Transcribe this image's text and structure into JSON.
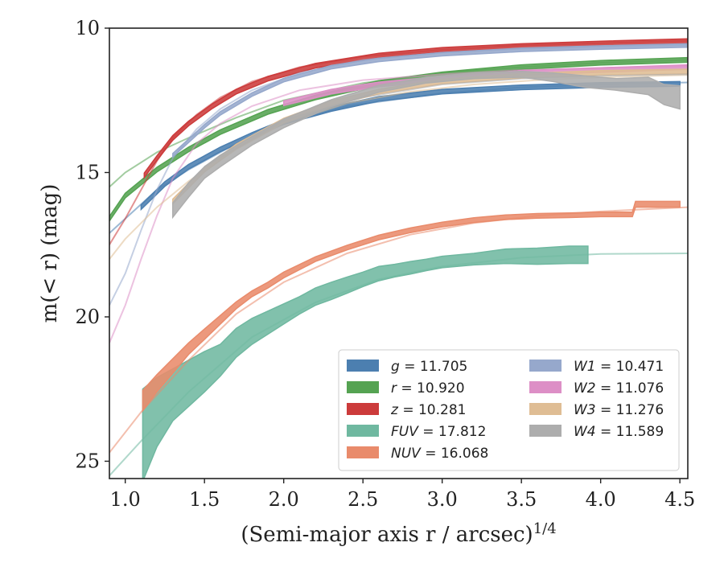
{
  "chart_data": {
    "type": "line",
    "title": "",
    "xlabel": "(Semi-major axis r / arcsec)^1/4",
    "ylabel": "m(< r) (mag)",
    "xlim": [
      0.9,
      4.55
    ],
    "ylim": [
      25.6,
      10
    ],
    "y_inverted": true,
    "xticks": [
      "1.0",
      "1.5",
      "2.0",
      "2.5",
      "3.0",
      "3.5",
      "4.0",
      "4.5"
    ],
    "xtick_values": [
      1.0,
      1.5,
      2.0,
      2.5,
      3.0,
      3.5,
      4.0,
      4.5
    ],
    "yticks": [
      "10",
      "15",
      "20",
      "25"
    ],
    "ytick_values": [
      10,
      15,
      20,
      25
    ],
    "grid": false,
    "legend_position": "lower-right",
    "legend": [
      {
        "label": "g = 11.705",
        "color": "#4c7fb0"
      },
      {
        "label": "r = 10.920",
        "color": "#55a352"
      },
      {
        "label": "z = 10.281",
        "color": "#cc3b3b"
      },
      {
        "label": "FUV = 17.812",
        "color": "#6fb8a0"
      },
      {
        "label": "NUV = 16.068",
        "color": "#e98b6b"
      },
      {
        "label": "W1 = 10.471",
        "color": "#96a8cc"
      },
      {
        "label": "W2 = 11.076",
        "color": "#dd8fc6"
      },
      {
        "label": "W3 = 11.276",
        "color": "#dfbd94"
      },
      {
        "label": "W4 = 11.589",
        "color": "#adadad"
      }
    ],
    "series": [
      {
        "name": "g = 11.705",
        "color": "#4c7fb0",
        "x": [
          1.1,
          1.25,
          1.4,
          1.6,
          1.8,
          2.0,
          2.3,
          2.6,
          3.0,
          3.5,
          4.0,
          4.5
        ],
        "y": [
          16.2,
          15.4,
          14.8,
          14.2,
          13.7,
          13.25,
          12.8,
          12.45,
          12.2,
          12.05,
          11.97,
          11.93
        ],
        "band": 0.08,
        "fit_x": [
          0.9,
          1.0,
          1.2,
          1.4,
          1.7,
          2.0,
          2.4,
          3.0,
          3.5,
          4.0,
          4.55
        ],
        "fit_y": [
          17.1,
          16.6,
          15.6,
          14.9,
          14.0,
          13.3,
          12.7,
          12.25,
          12.05,
          11.95,
          11.88
        ]
      },
      {
        "name": "r = 10.920",
        "color": "#55a352",
        "x": [
          0.9,
          1.0,
          1.2,
          1.4,
          1.6,
          1.9,
          2.2,
          2.6,
          3.0,
          3.5,
          4.0,
          4.55
        ],
        "y": [
          16.6,
          15.8,
          14.9,
          14.2,
          13.6,
          12.9,
          12.4,
          11.9,
          11.6,
          11.35,
          11.2,
          11.1
        ],
        "band": 0.08,
        "fit_x": [
          0.9,
          1.0,
          1.2,
          1.4,
          1.7,
          2.0,
          2.5,
          3.0,
          3.5,
          4.0,
          4.55
        ],
        "fit_y": [
          15.5,
          15.0,
          14.3,
          13.8,
          13.1,
          12.5,
          11.9,
          11.55,
          11.35,
          11.2,
          11.1
        ]
      },
      {
        "name": "z = 10.281",
        "color": "#cc3b3b",
        "x": [
          1.12,
          1.2,
          1.3,
          1.4,
          1.55,
          1.7,
          1.9,
          2.2,
          2.6,
          3.0,
          3.5,
          4.0,
          4.55
        ],
        "y": [
          15.1,
          14.5,
          13.8,
          13.3,
          12.7,
          12.2,
          11.75,
          11.3,
          10.95,
          10.75,
          10.62,
          10.53,
          10.45
        ],
        "band": 0.08,
        "fit_x": [
          0.9,
          1.0,
          1.1,
          1.2,
          1.3,
          1.45,
          1.6,
          1.8,
          2.1,
          2.5,
          3.0,
          3.5,
          4.0,
          4.55
        ],
        "fit_y": [
          17.5,
          16.6,
          15.6,
          14.6,
          13.8,
          13.0,
          12.4,
          11.85,
          11.35,
          10.98,
          10.75,
          10.6,
          10.52,
          10.44
        ]
      },
      {
        "name": "FUV = 17.812",
        "color": "#6fb8a0",
        "x": [
          1.11,
          1.2,
          1.3,
          1.4,
          1.5,
          1.6,
          1.7,
          1.8,
          1.9,
          2.0,
          2.1,
          2.2,
          2.3,
          2.4,
          2.5,
          2.6,
          2.7,
          2.8,
          2.9,
          3.0,
          3.2,
          3.4,
          3.6,
          3.8,
          3.92
        ],
        "y": [
          24.1,
          23.3,
          22.7,
          22.3,
          21.9,
          21.5,
          20.9,
          20.5,
          20.2,
          19.9,
          19.6,
          19.3,
          19.1,
          18.9,
          18.7,
          18.5,
          18.4,
          18.3,
          18.2,
          18.1,
          18.0,
          17.9,
          17.9,
          17.85,
          17.85
        ],
        "band": [
          1.6,
          1.2,
          0.9,
          0.8,
          0.7,
          0.55,
          0.5,
          0.45,
          0.4,
          0.35,
          0.3,
          0.3,
          0.3,
          0.28,
          0.25,
          0.25,
          0.22,
          0.22,
          0.2,
          0.2,
          0.2,
          0.25,
          0.28,
          0.3,
          0.3
        ],
        "fit_x": [
          0.9,
          1.1,
          1.4,
          1.8,
          2.2,
          2.6,
          3.0,
          3.5,
          4.0,
          4.55
        ],
        "fit_y": [
          25.5,
          24.3,
          22.6,
          20.7,
          19.5,
          18.7,
          18.25,
          17.95,
          17.82,
          17.8
        ]
      },
      {
        "name": "NUV = 16.068",
        "color": "#e98b6b",
        "x": [
          1.11,
          1.2,
          1.3,
          1.4,
          1.5,
          1.6,
          1.7,
          1.8,
          1.9,
          2.0,
          2.2,
          2.4,
          2.6,
          2.8,
          3.0,
          3.2,
          3.4,
          3.6,
          3.8,
          4.0,
          4.2,
          4.22,
          4.5
        ],
        "y": [
          22.9,
          22.3,
          21.7,
          21.1,
          20.6,
          20.1,
          19.6,
          19.2,
          18.9,
          18.55,
          18.0,
          17.6,
          17.25,
          17.0,
          16.8,
          16.65,
          16.55,
          16.5,
          16.48,
          16.45,
          16.45,
          16.1,
          16.1
        ],
        "band": [
          0.35,
          0.3,
          0.25,
          0.2,
          0.18,
          0.15,
          0.12,
          0.1,
          0.1,
          0.1,
          0.08,
          0.08,
          0.08,
          0.08,
          0.08,
          0.08,
          0.08,
          0.08,
          0.08,
          0.08,
          0.08,
          0.1,
          0.1
        ],
        "fit_x": [
          0.9,
          1.1,
          1.4,
          1.7,
          2.0,
          2.4,
          2.8,
          3.2,
          3.6,
          4.0,
          4.55
        ],
        "fit_y": [
          24.7,
          23.3,
          21.5,
          19.9,
          18.8,
          17.8,
          17.15,
          16.75,
          16.5,
          16.35,
          16.2
        ]
      },
      {
        "name": "W1 = 10.471",
        "color": "#96a8cc",
        "x": [
          1.3,
          1.4,
          1.5,
          1.6,
          1.8,
          2.0,
          2.3,
          2.6,
          3.0,
          3.5,
          4.0,
          4.55
        ],
        "y": [
          14.4,
          13.9,
          13.4,
          12.95,
          12.3,
          11.8,
          11.35,
          11.1,
          10.9,
          10.75,
          10.67,
          10.6
        ],
        "band": 0.06,
        "fit_x": [
          0.9,
          1.0,
          1.1,
          1.2,
          1.3,
          1.45,
          1.6,
          1.8,
          2.1,
          2.5,
          3.0,
          3.5,
          4.0,
          4.55
        ],
        "fit_y": [
          19.6,
          18.5,
          17.0,
          15.6,
          14.5,
          13.5,
          12.8,
          12.15,
          11.55,
          11.1,
          10.85,
          10.72,
          10.65,
          10.58
        ]
      },
      {
        "name": "W2 = 11.076",
        "color": "#dd8fc6",
        "x": [
          2.0,
          2.3,
          2.6,
          3.0,
          3.5,
          4.0,
          4.55
        ],
        "y": [
          12.6,
          12.2,
          11.95,
          11.75,
          11.55,
          11.45,
          11.35
        ],
        "band": 0.08,
        "fit_x": [
          0.9,
          1.0,
          1.1,
          1.2,
          1.3,
          1.45,
          1.6,
          1.8,
          2.1,
          2.5,
          3.0,
          3.5,
          4.0,
          4.55
        ],
        "fit_y": [
          20.9,
          19.6,
          18.0,
          16.5,
          15.2,
          14.0,
          13.3,
          12.7,
          12.15,
          11.8,
          11.6,
          11.45,
          11.38,
          11.32
        ]
      },
      {
        "name": "W3 = 11.276",
        "color": "#dfbd94",
        "x": [
          1.3,
          1.5,
          1.7,
          2.0,
          2.3,
          2.6,
          3.0,
          3.5,
          4.0,
          4.55
        ],
        "y": [
          16.0,
          14.9,
          14.1,
          13.2,
          12.6,
          12.2,
          11.85,
          11.65,
          11.55,
          11.5
        ],
        "band": 0.08,
        "fit_x": [
          0.9,
          1.0,
          1.2,
          1.4,
          1.7,
          2.0,
          2.4,
          2.8,
          3.2,
          3.6,
          4.0,
          4.55
        ],
        "fit_y": [
          18.0,
          17.3,
          16.2,
          15.3,
          14.2,
          13.3,
          12.6,
          12.2,
          11.95,
          11.8,
          11.7,
          11.62
        ]
      },
      {
        "name": "W4 = 11.589",
        "color": "#adadad",
        "x": [
          1.3,
          1.4,
          1.5,
          1.6,
          1.8,
          2.0,
          2.3,
          2.6,
          2.9,
          3.2,
          3.5,
          3.7,
          3.9,
          4.1,
          4.3,
          4.4,
          4.5
        ],
        "y": [
          16.3,
          15.6,
          15.0,
          14.6,
          13.9,
          13.3,
          12.6,
          12.1,
          11.8,
          11.65,
          11.6,
          11.7,
          11.85,
          11.95,
          12.0,
          12.3,
          12.4
        ],
        "band": [
          0.25,
          0.25,
          0.2,
          0.2,
          0.15,
          0.15,
          0.12,
          0.12,
          0.1,
          0.1,
          0.1,
          0.15,
          0.2,
          0.2,
          0.3,
          0.35,
          0.4
        ],
        "fit_x": [
          1.5,
          2.0,
          2.5,
          3.0,
          3.5,
          4.0,
          4.55
        ],
        "fit_y": [
          14.8,
          13.2,
          12.4,
          11.95,
          11.75,
          11.65,
          11.6
        ]
      }
    ]
  }
}
